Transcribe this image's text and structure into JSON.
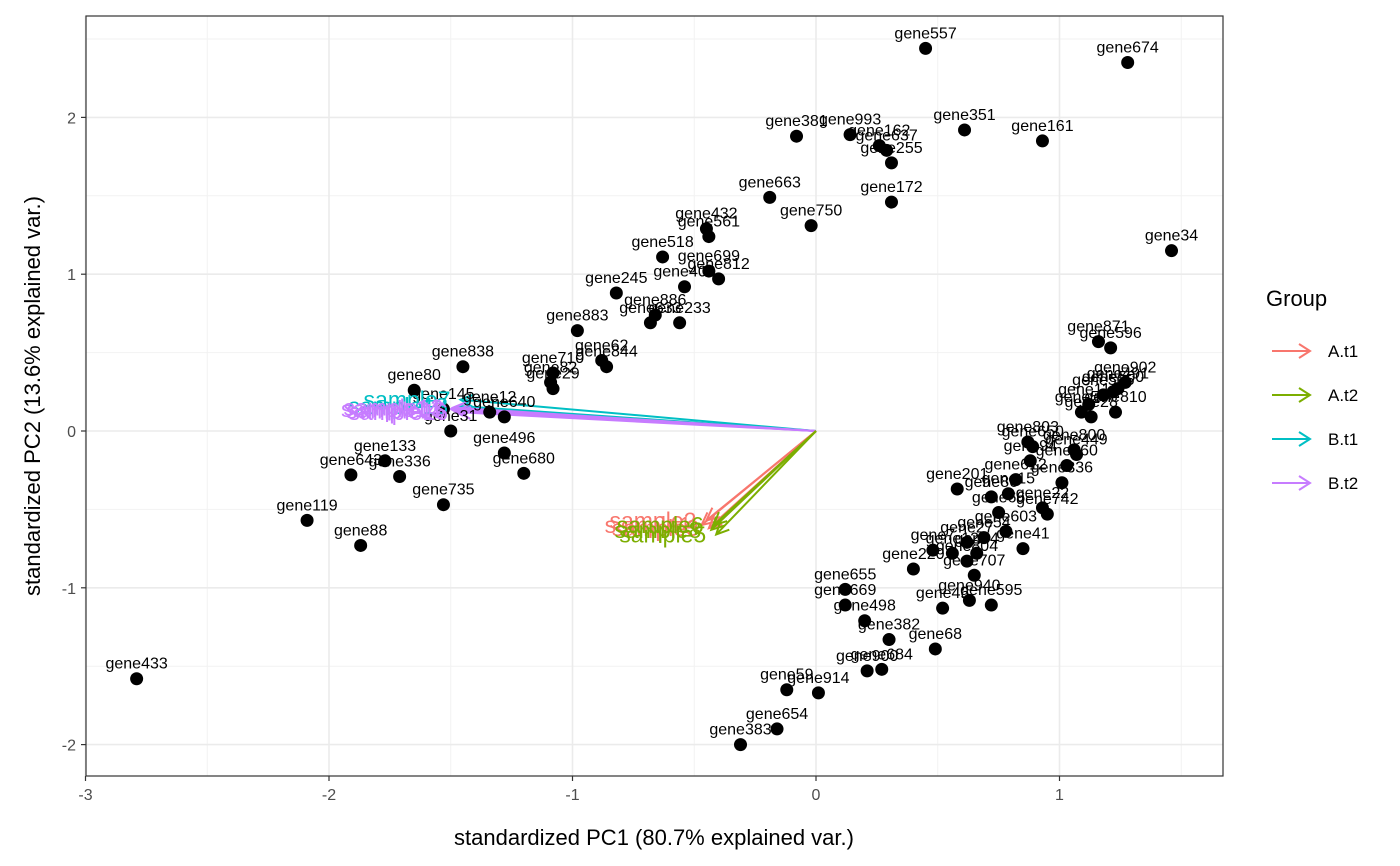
{
  "chart_data": {
    "type": "scatter",
    "subtype": "biplot",
    "title": "",
    "xlabel": "standardized PC1 (80.7% explained var.)",
    "ylabel": "standardized PC2 (13.6% explained var.)",
    "xlim": [
      -3,
      1.67
    ],
    "ylim": [
      -2.2,
      2.65
    ],
    "xticks": [
      -3,
      -2,
      -1,
      0,
      1
    ],
    "xtick_labels": [
      "-3",
      "-2",
      "-1",
      "0",
      "1"
    ],
    "yticks": [
      -2,
      -1,
      0,
      1,
      2
    ],
    "ytick_labels": [
      "-2",
      "-1",
      "0",
      "1",
      "2"
    ],
    "grid": true,
    "legend": {
      "title": "Group",
      "position": "right",
      "entries": [
        {
          "label": "A.t1",
          "color": "#F8766D"
        },
        {
          "label": "A.t2",
          "color": "#7CAE00"
        },
        {
          "label": "B.t1",
          "color": "#00BFC4"
        },
        {
          "label": "B.t2",
          "color": "#C77CFF"
        }
      ]
    },
    "point_color": "#000000",
    "points": [
      {
        "label": "gene557",
        "x": 0.45,
        "y": 2.44
      },
      {
        "label": "gene674",
        "x": 1.28,
        "y": 2.35
      },
      {
        "label": "gene381",
        "x": -0.08,
        "y": 1.88
      },
      {
        "label": "gene993",
        "x": 0.14,
        "y": 1.89
      },
      {
        "label": "gene162",
        "x": 0.26,
        "y": 1.82
      },
      {
        "label": "gene637",
        "x": 0.29,
        "y": 1.79
      },
      {
        "label": "gene255",
        "x": 0.31,
        "y": 1.71
      },
      {
        "label": "gene351",
        "x": 0.61,
        "y": 1.92
      },
      {
        "label": "gene161",
        "x": 0.93,
        "y": 1.85
      },
      {
        "label": "gene663",
        "x": -0.19,
        "y": 1.49
      },
      {
        "label": "gene172",
        "x": 0.31,
        "y": 1.46
      },
      {
        "label": "gene750",
        "x": -0.02,
        "y": 1.31
      },
      {
        "label": "gene34",
        "x": 1.46,
        "y": 1.15
      },
      {
        "label": "gene433",
        "x": -2.79,
        "y": -1.58
      },
      {
        "label": "gene432",
        "x": -0.45,
        "y": 1.29
      },
      {
        "label": "gene561",
        "x": -0.44,
        "y": 1.24
      },
      {
        "label": "gene518",
        "x": -0.63,
        "y": 1.11
      },
      {
        "label": "gene699",
        "x": -0.44,
        "y": 1.02
      },
      {
        "label": "gene812",
        "x": -0.4,
        "y": 0.97
      },
      {
        "label": "gene403",
        "x": -0.54,
        "y": 0.92
      },
      {
        "label": "gene245",
        "x": -0.82,
        "y": 0.88
      },
      {
        "label": "gene886",
        "x": -0.66,
        "y": 0.74
      },
      {
        "label": "gene633",
        "x": -0.68,
        "y": 0.69
      },
      {
        "label": "gene233",
        "x": -0.56,
        "y": 0.69
      },
      {
        "label": "gene883",
        "x": -0.98,
        "y": 0.64
      },
      {
        "label": "gene62",
        "x": -0.88,
        "y": 0.45
      },
      {
        "label": "gene844",
        "x": -0.86,
        "y": 0.41
      },
      {
        "label": "gene710",
        "x": -1.08,
        "y": 0.37
      },
      {
        "label": "gene838",
        "x": -1.45,
        "y": 0.41
      },
      {
        "label": "gene82",
        "x": -1.09,
        "y": 0.31
      },
      {
        "label": "gene80",
        "x": -1.65,
        "y": 0.26
      },
      {
        "label": "gene29",
        "x": -1.08,
        "y": 0.27
      },
      {
        "label": "gene640",
        "x": -1.28,
        "y": 0.09
      },
      {
        "label": "gene12",
        "x": -1.34,
        "y": 0.12
      },
      {
        "label": "gene145",
        "x": -1.53,
        "y": 0.14
      },
      {
        "label": "gene31",
        "x": -1.5,
        "y": 0.0
      },
      {
        "label": "gene496",
        "x": -1.28,
        "y": -0.14
      },
      {
        "label": "gene680",
        "x": -1.2,
        "y": -0.27
      },
      {
        "label": "gene133",
        "x": -1.77,
        "y": -0.19
      },
      {
        "label": "gene336",
        "x": -1.71,
        "y": -0.29
      },
      {
        "label": "gene643",
        "x": -1.91,
        "y": -0.28
      },
      {
        "label": "gene735",
        "x": -1.53,
        "y": -0.47
      },
      {
        "label": "gene119",
        "x": -2.09,
        "y": -0.57
      },
      {
        "label": "gene88",
        "x": -1.87,
        "y": -0.73
      },
      {
        "label": "gene871",
        "x": 1.16,
        "y": 0.57
      },
      {
        "label": "gene596",
        "x": 1.21,
        "y": 0.53
      },
      {
        "label": "gene902",
        "x": 1.27,
        "y": 0.31
      },
      {
        "label": "gene491",
        "x": 1.24,
        "y": 0.27
      },
      {
        "label": "gene505",
        "x": 1.18,
        "y": 0.23
      },
      {
        "label": "gene500",
        "x": 1.22,
        "y": 0.25
      },
      {
        "label": "gene110",
        "x": 1.12,
        "y": 0.17
      },
      {
        "label": "gene57",
        "x": 1.09,
        "y": 0.12
      },
      {
        "label": "gene810",
        "x": 1.23,
        "y": 0.12
      },
      {
        "label": "gene28",
        "x": 1.13,
        "y": 0.09
      },
      {
        "label": "gene803",
        "x": 0.87,
        "y": -0.07
      },
      {
        "label": "gene650",
        "x": 0.89,
        "y": -0.1
      },
      {
        "label": "gene800",
        "x": 1.06,
        "y": -0.12
      },
      {
        "label": "gene449",
        "x": 1.07,
        "y": -0.15
      },
      {
        "label": "gene860",
        "x": 1.03,
        "y": -0.22
      },
      {
        "label": "gene94",
        "x": 0.88,
        "y": -0.19
      },
      {
        "label": "gene201",
        "x": 0.58,
        "y": -0.37
      },
      {
        "label": "gene336b",
        "x": 1.01,
        "y": -0.33
      },
      {
        "label": "gene612",
        "x": 0.82,
        "y": -0.31
      },
      {
        "label": "gene15",
        "x": 0.79,
        "y": -0.4
      },
      {
        "label": "gene86",
        "x": 0.72,
        "y": -0.42
      },
      {
        "label": "gene22",
        "x": 0.93,
        "y": -0.49
      },
      {
        "label": "gene742",
        "x": 0.95,
        "y": -0.53
      },
      {
        "label": "gene66",
        "x": 0.75,
        "y": -0.52
      },
      {
        "label": "gene603",
        "x": 0.78,
        "y": -0.64
      },
      {
        "label": "gene27",
        "x": 0.62,
        "y": -0.71
      },
      {
        "label": "gene4",
        "x": 0.66,
        "y": -0.78
      },
      {
        "label": "gene54",
        "x": 0.69,
        "y": -0.68
      },
      {
        "label": "gene41",
        "x": 0.85,
        "y": -0.75
      },
      {
        "label": "gene804",
        "x": 0.62,
        "y": -0.83
      },
      {
        "label": "gene7",
        "x": 0.48,
        "y": -0.76
      },
      {
        "label": "gene12b",
        "x": 0.56,
        "y": -0.78
      },
      {
        "label": "gene707",
        "x": 0.65,
        "y": -0.92
      },
      {
        "label": "gene220",
        "x": 0.4,
        "y": -0.88
      },
      {
        "label": "gene595",
        "x": 0.72,
        "y": -1.11
      },
      {
        "label": "gene940",
        "x": 0.63,
        "y": -1.08
      },
      {
        "label": "gene655",
        "x": 0.12,
        "y": -1.01
      },
      {
        "label": "gene669",
        "x": 0.12,
        "y": -1.11
      },
      {
        "label": "gene46",
        "x": 0.52,
        "y": -1.13
      },
      {
        "label": "gene498",
        "x": 0.2,
        "y": -1.21
      },
      {
        "label": "gene382",
        "x": 0.3,
        "y": -1.33
      },
      {
        "label": "gene68",
        "x": 0.49,
        "y": -1.39
      },
      {
        "label": "gene900",
        "x": 0.21,
        "y": -1.53
      },
      {
        "label": "gene684",
        "x": 0.27,
        "y": -1.52
      },
      {
        "label": "gene59",
        "x": -0.12,
        "y": -1.65
      },
      {
        "label": "gene914",
        "x": 0.01,
        "y": -1.67
      },
      {
        "label": "gene654",
        "x": -0.16,
        "y": -1.9
      },
      {
        "label": "gene383",
        "x": -0.31,
        "y": -2.0
      }
    ],
    "arrows": [
      {
        "label": "sample7",
        "group": "B.t1",
        "x": -1.46,
        "y": 0.2
      },
      {
        "label": "sample13",
        "group": "B.t1",
        "x": -1.47,
        "y": 0.16
      },
      {
        "label": "sample12",
        "group": "B.t2",
        "x": -1.49,
        "y": 0.15
      },
      {
        "label": "sample14",
        "group": "B.t2",
        "x": -1.5,
        "y": 0.14
      },
      {
        "label": "sample15",
        "group": "B.t2",
        "x": -1.48,
        "y": 0.13
      },
      {
        "label": "sample16",
        "group": "B.t2",
        "x": -1.47,
        "y": 0.12
      },
      {
        "label": "sample2",
        "group": "A.t1",
        "x": -0.45,
        "y": -0.57
      },
      {
        "label": "sample1",
        "group": "A.t1",
        "x": -0.47,
        "y": -0.6
      },
      {
        "label": "sample3",
        "group": "A.t1",
        "x": -0.44,
        "y": -0.62
      },
      {
        "label": "sample6",
        "group": "A.t2",
        "x": -0.42,
        "y": -0.6
      },
      {
        "label": "sample8",
        "group": "A.t2",
        "x": -0.43,
        "y": -0.63
      },
      {
        "label": "sample5",
        "group": "A.t2",
        "x": -0.41,
        "y": -0.66
      }
    ]
  }
}
